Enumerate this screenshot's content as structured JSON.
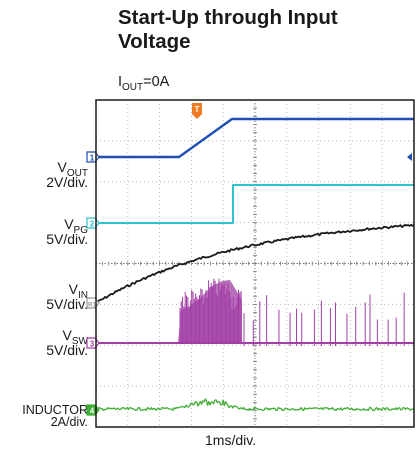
{
  "chart_data": {
    "type": "line",
    "title": "Start-Up through Input Voltage",
    "subtitle": {
      "prefix": "I",
      "sub": "OUT",
      "suffix": "=0A"
    },
    "xlabel": "1ms/div.",
    "grid": true,
    "channels": [
      {
        "marker": "1",
        "name": {
          "main": "V",
          "sub": "OUT"
        },
        "scale": "2V/div.",
        "color": "#1f4eb5"
      },
      {
        "marker": "2",
        "name": {
          "main": "V",
          "sub": "PG"
        },
        "scale": "5V/div.",
        "color": "#2fc3cc"
      },
      {
        "marker": "R1",
        "name": {
          "main": "V",
          "sub": "IN"
        },
        "scale": "5V/div.",
        "color": "#1a1a1a"
      },
      {
        "marker": "3",
        "name": {
          "main": "V",
          "sub": "SW"
        },
        "scale": "5V/div.",
        "color": "#a23fa6"
      },
      {
        "marker": "4",
        "name": {
          "main": "INDUCTOR",
          "sub": ""
        },
        "scale": "2A/div.",
        "color": "#3fae33"
      }
    ],
    "trigger_marker": "T",
    "colors": {
      "trigger": "#f07b22",
      "grid": "#b5b5b5"
    }
  }
}
